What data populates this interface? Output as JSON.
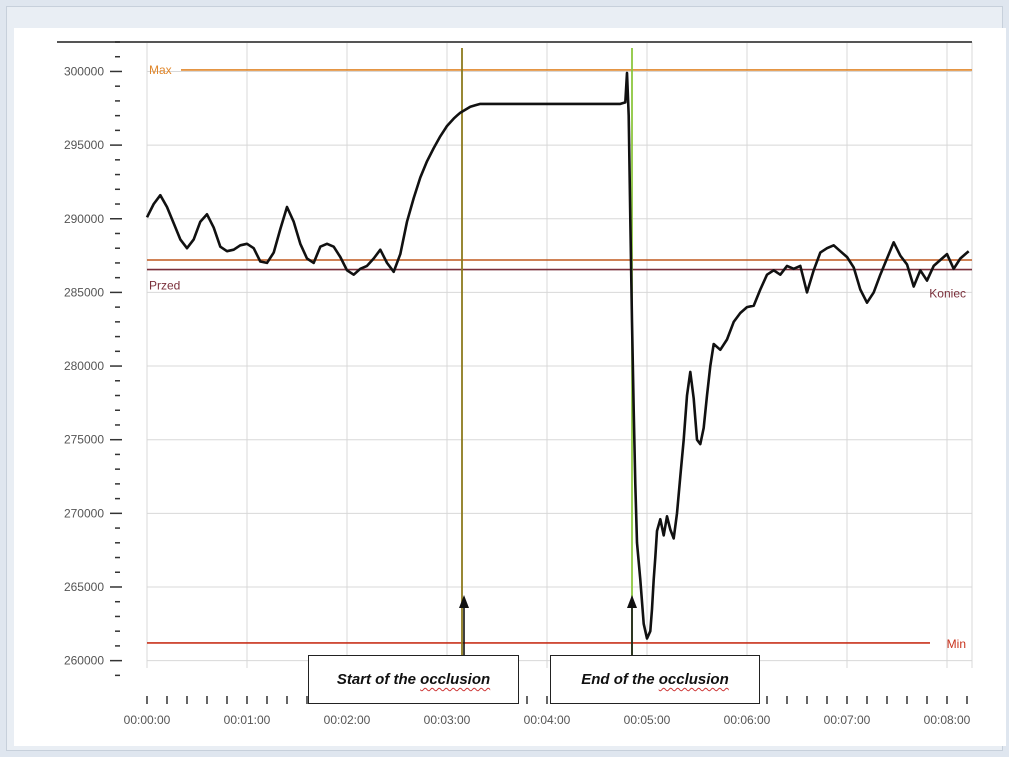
{
  "chart_data": {
    "type": "line",
    "title": "",
    "xlabel": "",
    "ylabel": "",
    "ylim": [
      259500,
      302000
    ],
    "xlim": [
      0,
      495
    ],
    "y_ticks": [
      260000,
      265000,
      270000,
      275000,
      280000,
      285000,
      290000,
      295000,
      300000
    ],
    "y_tick_labels": [
      "260000",
      "265000",
      "270000",
      "275000",
      "280000",
      "285000",
      "290000",
      "295000",
      "300000"
    ],
    "x_ticks": [
      0,
      60,
      120,
      180,
      240,
      300,
      360,
      420,
      480
    ],
    "x_tick_labels": [
      "00:00:00",
      "00:01:00",
      "00:02:00",
      "00:03:00",
      "00:04:00",
      "00:05:00",
      "00:06:00",
      "00:07:00",
      "00:08:00"
    ],
    "grid": true,
    "series": [
      {
        "name": "",
        "color": "#111111",
        "x": [
          0,
          4,
          8,
          12,
          16,
          20,
          24,
          28,
          32,
          36,
          40,
          44,
          48,
          52,
          56,
          60,
          64,
          68,
          72,
          76,
          80,
          84,
          88,
          92,
          96,
          100,
          104,
          108,
          112,
          116,
          120,
          124,
          128,
          132,
          136,
          140,
          144,
          148,
          152,
          156,
          160,
          164,
          168,
          172,
          176,
          180,
          184,
          186,
          188,
          191,
          194,
          197,
          200,
          204,
          208,
          212,
          216,
          220,
          225,
          230,
          235,
          240,
          245,
          250,
          255,
          260,
          265,
          270,
          275,
          280,
          284,
          287,
          288,
          289,
          290,
          291,
          292,
          293,
          294,
          296,
          298,
          300,
          302,
          303,
          304,
          305,
          306,
          308,
          310,
          312,
          314,
          316,
          318,
          320,
          322,
          324,
          326,
          328,
          330,
          332,
          334,
          336,
          338,
          340,
          344,
          348,
          352,
          356,
          360,
          364,
          368,
          372,
          376,
          380,
          384,
          388,
          392,
          396,
          400,
          404,
          408,
          412,
          416,
          420,
          424,
          428,
          432,
          436,
          440,
          444,
          448,
          452,
          456,
          460,
          464,
          468,
          472,
          476,
          480,
          484,
          488,
          491,
          493
        ],
        "values": [
          290100,
          291000,
          291600,
          290800,
          289700,
          288600,
          288000,
          288600,
          289800,
          290300,
          289400,
          288100,
          287800,
          287900,
          288200,
          288300,
          288000,
          287100,
          287000,
          287700,
          289300,
          290800,
          289800,
          288300,
          287300,
          287000,
          288100,
          288300,
          288100,
          287400,
          286500,
          286200,
          286600,
          286800,
          287300,
          287900,
          287000,
          286400,
          287600,
          289800,
          291400,
          292800,
          293900,
          294800,
          295600,
          296300,
          296800,
          297000,
          297200,
          297400,
          297600,
          297700,
          297800,
          297800,
          297800,
          297800,
          297800,
          297800,
          297800,
          297800,
          297800,
          297800,
          297800,
          297800,
          297800,
          297800,
          297800,
          297800,
          297800,
          297800,
          297800,
          297900,
          299900,
          297000,
          290000,
          283000,
          277000,
          272000,
          268000,
          265500,
          262500,
          261500,
          262000,
          263500,
          265500,
          267000,
          268800,
          269600,
          268500,
          269800,
          268900,
          268300,
          270000,
          272500,
          275000,
          278000,
          279600,
          277800,
          275000,
          274700,
          275800,
          278000,
          280000,
          281500,
          281100,
          281800,
          283000,
          283600,
          284000,
          284100,
          285200,
          286200,
          286500,
          286200,
          286800,
          286600,
          286800,
          285000,
          286500,
          287700,
          288000,
          288200,
          287800,
          287400,
          286700,
          285200,
          284300,
          285000,
          286200,
          287300,
          288400,
          287500,
          286900,
          285400,
          286500,
          285800,
          286800,
          287200,
          287600,
          286600,
          287300,
          287600,
          287800
        ]
      }
    ],
    "reference_lines": [
      {
        "label": "Max",
        "value": 300100,
        "color": "#e0862a",
        "label_side": "left"
      },
      {
        "label": "",
        "value": 287200,
        "color": "#c0581f",
        "label_side": "none"
      },
      {
        "label": "Przed",
        "value": 286550,
        "color": "#7a2f3a",
        "label_side": "left"
      },
      {
        "label": "Koniec",
        "value": 286550,
        "color": "#7a2f3a",
        "label_side": "right"
      },
      {
        "label": "Min",
        "value": 261200,
        "color": "#c8321c",
        "label_side": "right"
      }
    ],
    "markers": [
      {
        "x": 189,
        "color": "#8c7a1e"
      },
      {
        "x": 291,
        "color": "#8cc63f"
      }
    ]
  },
  "annotations": {
    "start": {
      "prefix": "Start of the ",
      "emphasis": "occlusion"
    },
    "end": {
      "prefix": "End of the ",
      "emphasis": "occlusion"
    }
  }
}
